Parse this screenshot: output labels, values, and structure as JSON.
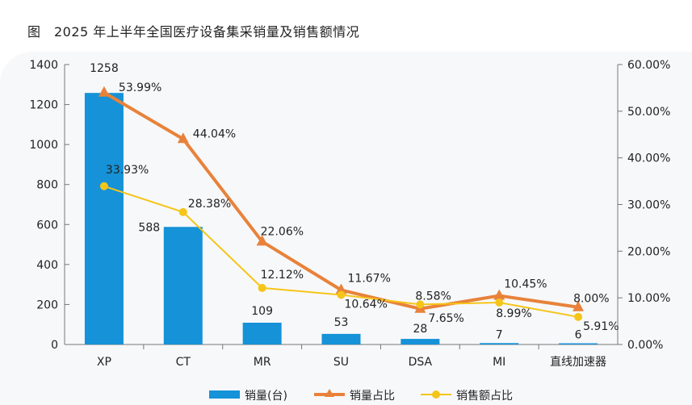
{
  "title": "图　2025 年上半年全国医疗设备集采销量及销售额情况",
  "chart_data": {
    "type": "bar",
    "title": "2025 年上半年全国医疗设备集采销量及销售额情况",
    "categories": [
      "XP",
      "CT",
      "MR",
      "SU",
      "DSA",
      "MI",
      "直线加速器"
    ],
    "y_left": {
      "min": 0,
      "max": 1400,
      "ticks": [
        "0",
        "200",
        "400",
        "600",
        "800",
        "1000",
        "1200",
        "1400"
      ]
    },
    "y_right": {
      "min": 0,
      "max": 60,
      "ticks": [
        "0.00%",
        "10.00%",
        "20.00%",
        "30.00%",
        "40.00%",
        "50.00%",
        "60.00%"
      ]
    },
    "grid": false,
    "legend_position": "bottom",
    "series": [
      {
        "name": "销量(台)",
        "type": "bar",
        "axis": "left",
        "color": "#1592d8",
        "values": [
          1258,
          588,
          109,
          53,
          28,
          7,
          6
        ],
        "labels": [
          "1258",
          "588",
          "109",
          "53",
          "28",
          "7",
          "6"
        ]
      },
      {
        "name": "销量占比",
        "type": "line",
        "marker": "triangle",
        "axis": "right",
        "color": "#e8823a",
        "values": [
          53.99,
          44.04,
          22.06,
          11.67,
          7.65,
          10.45,
          8.0
        ],
        "labels": [
          "53.99%",
          "44.04%",
          "22.06%",
          "11.67%",
          "7.65%",
          "10.45%",
          "8.00%"
        ]
      },
      {
        "name": "销售额占比",
        "type": "line",
        "marker": "circle",
        "axis": "right",
        "color": "#f5c518",
        "values": [
          33.93,
          28.38,
          12.12,
          10.64,
          8.58,
          8.99,
          5.91
        ],
        "labels": [
          "33.93%",
          "28.38%",
          "12.12%",
          "10.64%",
          "8.58%",
          "8.99%",
          "5.91%"
        ]
      }
    ]
  }
}
